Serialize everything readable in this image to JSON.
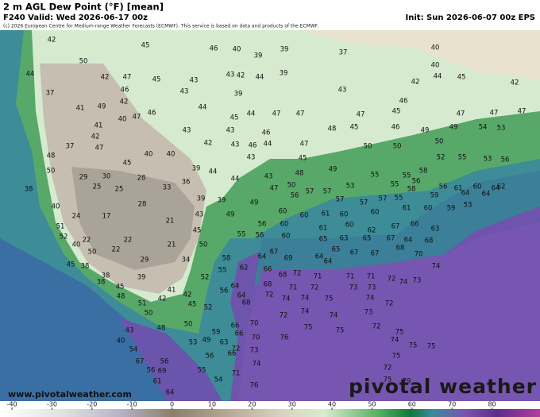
{
  "header": {
    "title": "2 m AGL Dew Point (°F) [mean]",
    "valid": "F240 Valid: Wed 2026-06-17 00z",
    "init": "Init: Sun 2026-06-07 00z EPS",
    "copyright": "(c) 2026 European Centre for Medium-range Weather Forecasts (ECMWF). This service is based on data and products of the ECMWF."
  },
  "stations": [
    42,
    45,
    46,
    40,
    39,
    37,
    40,
    50,
    39,
    40,
    44,
    42,
    47,
    45,
    43,
    43,
    42,
    44,
    39,
    42,
    44,
    45,
    42,
    37,
    46,
    43,
    39,
    43,
    46,
    41,
    49,
    42,
    46,
    44,
    44,
    47,
    47,
    47,
    45,
    47,
    47,
    47,
    40,
    47,
    45,
    41,
    43,
    43,
    46,
    48,
    45,
    46,
    49,
    49,
    54,
    53,
    42,
    37,
    47,
    42,
    43,
    46,
    44,
    47,
    50,
    50,
    50,
    40,
    40,
    43,
    45,
    52,
    55,
    53,
    56,
    48,
    50,
    45,
    39,
    44,
    44,
    43,
    48,
    49,
    55,
    55,
    58,
    29,
    30,
    28,
    36,
    50,
    57,
    53,
    55,
    56,
    56,
    61,
    60,
    64,
    38,
    25,
    25,
    33,
    39,
    39,
    49,
    47,
    56,
    57,
    57,
    57,
    57,
    55,
    58,
    59,
    64,
    64,
    62,
    40,
    28,
    43,
    49,
    60,
    60,
    61,
    60,
    60,
    61,
    60,
    59,
    53,
    24,
    17,
    21,
    56,
    60,
    61,
    60,
    62,
    67,
    66,
    63,
    51,
    52,
    45,
    55,
    56,
    60,
    65,
    63,
    65,
    67,
    64,
    68,
    40,
    22,
    22,
    21,
    50,
    22,
    58,
    64,
    67,
    69,
    64,
    65,
    67,
    67,
    68,
    70,
    45,
    50,
    29,
    34,
    55,
    62,
    66,
    68,
    64,
    74,
    38,
    38,
    39,
    52,
    64,
    72,
    71,
    71,
    71,
    72,
    73,
    38,
    45,
    41,
    56,
    64,
    68,
    71,
    72,
    73,
    73,
    74,
    48,
    42,
    42,
    68,
    72,
    74,
    74,
    75,
    74,
    72,
    51,
    45,
    52,
    74,
    74,
    73,
    50,
    72,
    72,
    50,
    66,
    70,
    75,
    75,
    75,
    43,
    48,
    59,
    66,
    70,
    76,
    74,
    40,
    54,
    53,
    49,
    63,
    72,
    73,
    75,
    75,
    67,
    56,
    56,
    66,
    74,
    72,
    75,
    56,
    69,
    55,
    54,
    71,
    75,
    61,
    64,
    76,
    79
  ],
  "colorbar": {
    "lim": [
      -43,
      92
    ],
    "ticks": [
      -40,
      -30,
      -20,
      -10,
      0,
      10,
      20,
      30,
      40,
      50,
      60,
      70,
      80
    ]
  },
  "footer": {
    "website": "www.pivotalweather.com",
    "logo": "pivotal weather"
  }
}
